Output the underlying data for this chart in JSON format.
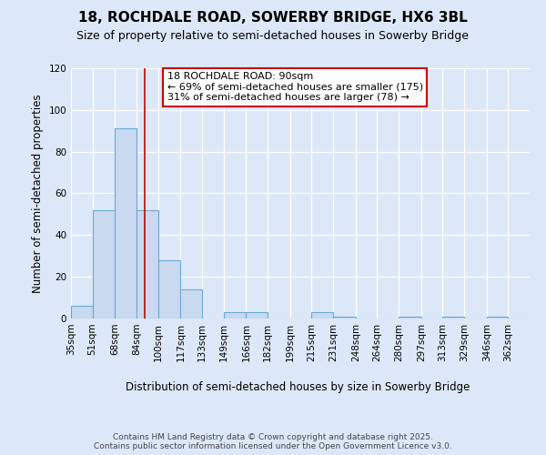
{
  "title": "18, ROCHDALE ROAD, SOWERBY BRIDGE, HX6 3BL",
  "subtitle": "Size of property relative to semi-detached houses in Sowerby Bridge",
  "xlabel": "Distribution of semi-detached houses by size in Sowerby Bridge",
  "ylabel": "Number of semi-detached properties",
  "bar_edges": [
    35,
    51,
    68,
    84,
    100,
    117,
    133,
    149,
    166,
    182,
    199,
    215,
    231,
    248,
    264,
    280,
    297,
    313,
    329,
    346,
    362
  ],
  "bar_heights": [
    6,
    52,
    91,
    52,
    28,
    14,
    0,
    3,
    3,
    0,
    0,
    3,
    1,
    0,
    0,
    1,
    0,
    1,
    0,
    1,
    0
  ],
  "bar_color": "#c9d9f0",
  "bar_edge_color": "#6aaad4",
  "property_size": 90,
  "vline_color": "#cc0000",
  "annotation_text": "18 ROCHDALE ROAD: 90sqm\n← 69% of semi-detached houses are smaller (175)\n31% of semi-detached houses are larger (78) →",
  "annotation_box_color": "#ffffff",
  "annotation_box_edge": "#cc0000",
  "ylim": [
    0,
    120
  ],
  "yticks": [
    0,
    20,
    40,
    60,
    80,
    100,
    120
  ],
  "background_color": "#dce8f8",
  "plot_bg_color": "#dce8f8",
  "grid_color": "#ffffff",
  "footer_text": "Contains HM Land Registry data © Crown copyright and database right 2025.\nContains public sector information licensed under the Open Government Licence v3.0.",
  "title_fontsize": 11,
  "subtitle_fontsize": 9,
  "axis_label_fontsize": 8.5,
  "tick_fontsize": 7.5,
  "annotation_fontsize": 8,
  "footer_fontsize": 6.5
}
